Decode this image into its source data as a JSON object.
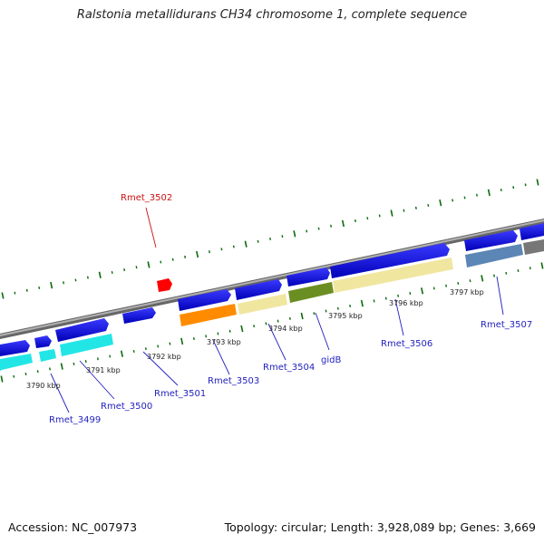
{
  "title": "Ralstonia metallidurans CH34 chromosome 1, complete sequence",
  "footer": {
    "accession": "Accession: NC_007973",
    "summary": "Topology: circular; Length: 3,928,089 bp; Genes: 3,669"
  },
  "colors": {
    "backbone": "#8a8a8a",
    "forward_gene": "#1010e0",
    "reverse_gene": "#1010e0",
    "cyan": "#22e6e6",
    "orange": "#ff8c00",
    "khaki": "#f0e6a0",
    "olive": "#6b8e23",
    "steel": "#5b86b5",
    "gray": "#777777",
    "highlight": "#ff0000",
    "tick_green": "#0b6b0b",
    "label_blue": "#1f1fbf",
    "label_red": "#cc1111"
  },
  "tick_labels": [
    "3790 kbp",
    "3791 kbp",
    "3792 kbp",
    "3793 kbp",
    "3794 kbp",
    "3795 kbp",
    "3796 kbp",
    "3797 kbp"
  ],
  "gene_labels": [
    "Rmet_3499",
    "Rmet_3500",
    "Rmet_3501",
    "Rmet_3502",
    "Rmet_3503",
    "Rmet_3504",
    "gidB",
    "Rmet_3506",
    "Rmet_3507"
  ],
  "highlighted_gene": "Rmet_3502"
}
